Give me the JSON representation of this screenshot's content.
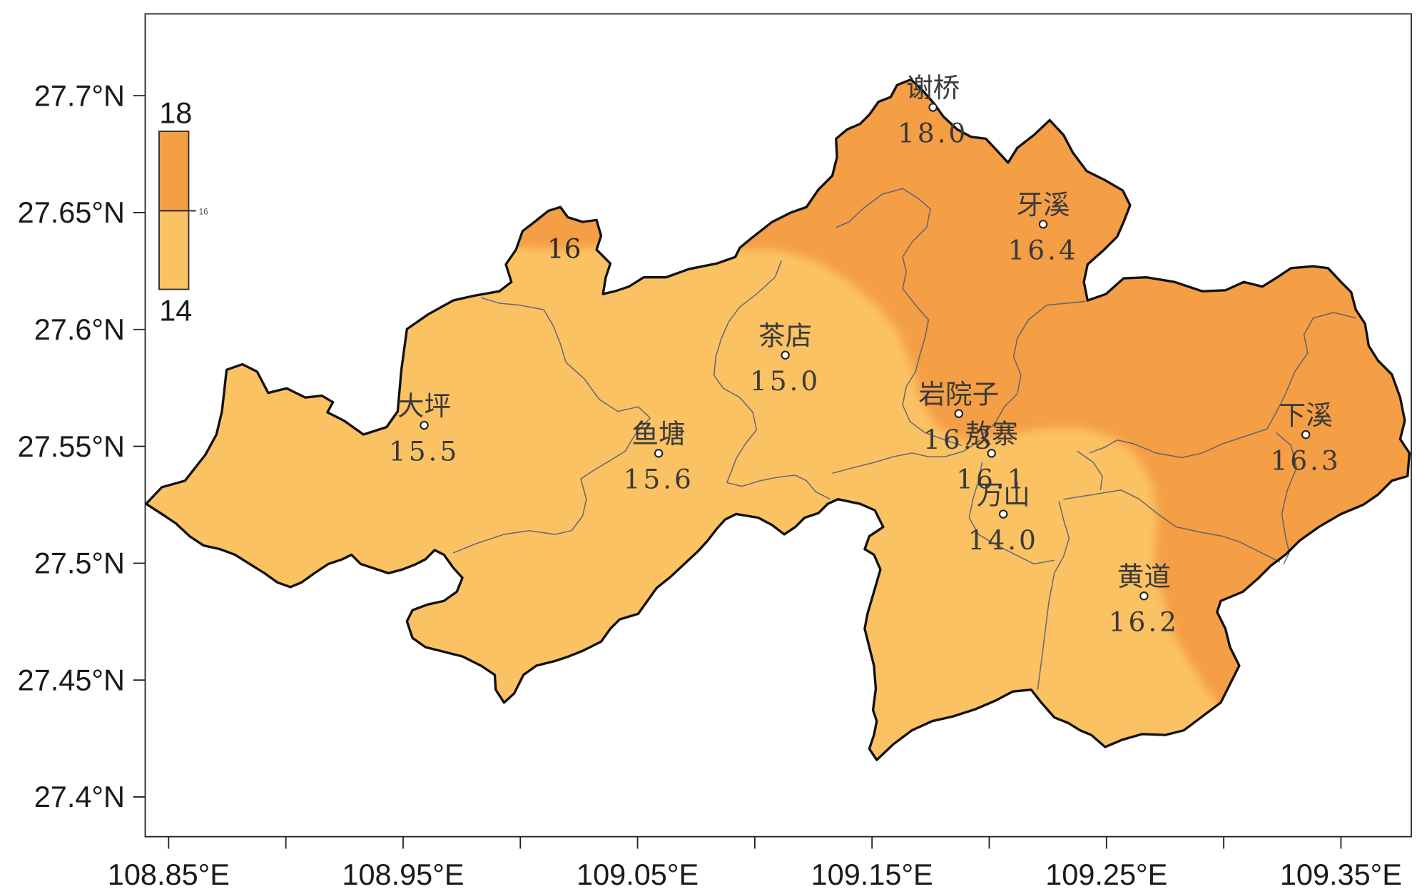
{
  "map_data": {
    "type": "map",
    "xlim": [
      108.84,
      109.38
    ],
    "ylim": [
      27.383,
      27.735
    ],
    "x_ticks": [
      {
        "label": "108.85°E",
        "value": 108.85
      },
      {
        "label": "108.95°E",
        "value": 108.95
      },
      {
        "label": "109.05°E",
        "value": 109.05
      },
      {
        "label": "109.15°E",
        "value": 109.15
      },
      {
        "label": "109.25°E",
        "value": 109.25
      },
      {
        "label": "109.35°E",
        "value": 109.35
      }
    ],
    "x_minor_ticks": [
      108.9,
      109.0,
      109.1,
      109.2,
      109.3
    ],
    "y_ticks": [
      {
        "label": "27.7°N",
        "value": 27.7
      },
      {
        "label": "27.65°N",
        "value": 27.65
      },
      {
        "label": "27.6°N",
        "value": 27.6
      },
      {
        "label": "27.55°N",
        "value": 27.55
      },
      {
        "label": "27.5°N",
        "value": 27.5
      },
      {
        "label": "27.45°N",
        "value": 27.45
      },
      {
        "label": "27.4°N",
        "value": 27.4
      }
    ],
    "stations": [
      {
        "name": "谢桥",
        "value": "18.0",
        "lon": 109.176,
        "lat": 27.695
      },
      {
        "name": "牙溪",
        "value": "16.4",
        "lon": 109.223,
        "lat": 27.645
      },
      {
        "name": "茶店",
        "value": "15.0",
        "lon": 109.113,
        "lat": 27.589
      },
      {
        "name": "大坪",
        "value": "15.5",
        "lon": 108.959,
        "lat": 27.559
      },
      {
        "name": "鱼塘",
        "value": "15.6",
        "lon": 109.059,
        "lat": 27.547
      },
      {
        "name": "岩院子",
        "value": "16.3",
        "lon": 109.187,
        "lat": 27.564
      },
      {
        "name": "敖寨",
        "value": "16.1",
        "lon": 109.201,
        "lat": 27.547
      },
      {
        "name": "万山",
        "value": "14.0",
        "lon": 109.206,
        "lat": 27.521
      },
      {
        "name": "黄道",
        "value": "16.2",
        "lon": 109.266,
        "lat": 27.486
      },
      {
        "name": "下溪",
        "value": "16.3",
        "lon": 109.335,
        "lat": 27.555
      }
    ],
    "contour_label": "16",
    "legend": {
      "max_label": "18",
      "mid_label": "16",
      "min_label": "14",
      "orientation": "vertical",
      "placement": "top-left"
    },
    "colors": {
      "high": "#F49E45",
      "low": "#FBC264",
      "boundary": "#111111",
      "inner_boundary": "#4A5A78"
    }
  }
}
